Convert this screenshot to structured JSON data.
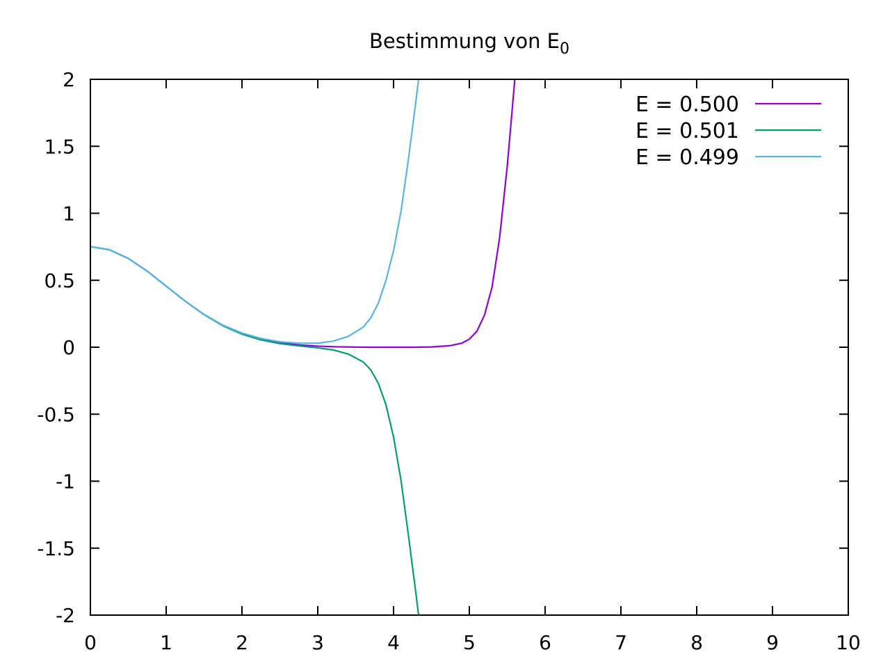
{
  "chart_data": {
    "type": "line",
    "title": "Bestimmung von E",
    "title_subscript": "0",
    "xlabel": "",
    "ylabel": "",
    "xlim": [
      0,
      10
    ],
    "ylim": [
      -2,
      2
    ],
    "x_ticks": [
      0,
      1,
      2,
      3,
      4,
      5,
      6,
      7,
      8,
      9,
      10
    ],
    "x_tick_labels": [
      "0",
      "1",
      "2",
      "3",
      "4",
      "5",
      "6",
      "7",
      "8",
      "9",
      "10"
    ],
    "y_ticks": [
      2,
      1.5,
      1,
      0.5,
      0,
      -0.5,
      -1,
      -1.5,
      -2
    ],
    "y_tick_labels": [
      "2",
      "1.5",
      "1",
      "0.5",
      "0",
      "-0.5",
      "-1",
      "-1.5",
      "-2"
    ],
    "grid": false,
    "legend_position": "top-right",
    "series": [
      {
        "name": "E = 0.500",
        "color": "#9400d3",
        "x": [
          0,
          0.25,
          0.5,
          0.75,
          1,
          1.25,
          1.5,
          1.75,
          2,
          2.25,
          2.5,
          2.75,
          3,
          3.25,
          3.5,
          3.75,
          4,
          4.25,
          4.5,
          4.75,
          4.9,
          5.0,
          5.1,
          5.2,
          5.3,
          5.4,
          5.5,
          5.6
        ],
        "y": [
          0.751,
          0.728,
          0.663,
          0.568,
          0.456,
          0.344,
          0.244,
          0.162,
          0.102,
          0.06,
          0.033,
          0.017,
          0.008,
          0.003,
          0.001,
          0.0,
          0.0,
          0.0,
          0.002,
          0.012,
          0.03,
          0.06,
          0.12,
          0.24,
          0.45,
          0.82,
          1.35,
          2.0
        ]
      },
      {
        "name": "E = 0.501",
        "color": "#009e73",
        "x": [
          0,
          0.25,
          0.5,
          0.75,
          1,
          1.25,
          1.5,
          1.75,
          2,
          2.25,
          2.5,
          2.75,
          3,
          3.2,
          3.4,
          3.6,
          3.7,
          3.8,
          3.9,
          4.0,
          4.1,
          4.2,
          4.3,
          4.33
        ],
        "y": [
          0.751,
          0.728,
          0.663,
          0.568,
          0.456,
          0.344,
          0.243,
          0.16,
          0.098,
          0.055,
          0.027,
          0.01,
          -0.005,
          -0.02,
          -0.05,
          -0.11,
          -0.17,
          -0.27,
          -0.43,
          -0.67,
          -1.0,
          -1.42,
          -1.86,
          -2.0
        ]
      },
      {
        "name": "E = 0.499",
        "color": "#56b4e9",
        "x": [
          0,
          0.25,
          0.5,
          0.75,
          1,
          1.25,
          1.5,
          1.75,
          2,
          2.25,
          2.5,
          2.75,
          3,
          3.2,
          3.4,
          3.6,
          3.7,
          3.8,
          3.9,
          4.0,
          4.1,
          4.2,
          4.3,
          4.33
        ],
        "y": [
          0.751,
          0.728,
          0.663,
          0.568,
          0.456,
          0.344,
          0.245,
          0.164,
          0.106,
          0.066,
          0.041,
          0.03,
          0.03,
          0.045,
          0.08,
          0.15,
          0.22,
          0.33,
          0.5,
          0.72,
          1.02,
          1.42,
          1.86,
          2.0
        ]
      }
    ]
  }
}
